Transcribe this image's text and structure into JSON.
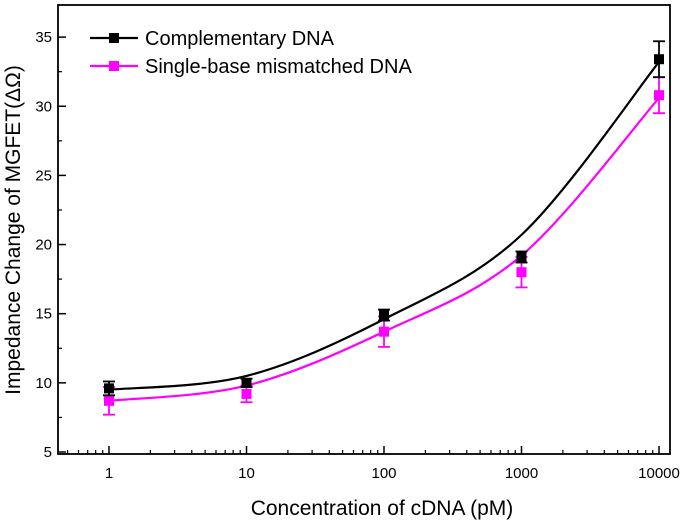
{
  "chart_data": {
    "type": "scatter",
    "xlabel": "Concentration of cDNA (pM)",
    "ylabel": "Impedance Change of MGFET(ΔΩ)",
    "x_scale": "log",
    "xlim": [
      0.5,
      15000
    ],
    "ylim": [
      5,
      37
    ],
    "x_ticks": [
      1,
      10,
      100,
      1000,
      10000
    ],
    "x_tick_labels": [
      "1",
      "10",
      "100",
      "1000",
      "10000"
    ],
    "y_ticks": [
      5,
      10,
      15,
      20,
      25,
      30,
      35
    ],
    "y_tick_labels": [
      "5",
      "10",
      "15",
      "20",
      "25",
      "30",
      "35"
    ],
    "grid": false,
    "legend_placement": "top-left",
    "x": [
      1,
      10,
      100,
      1000,
      10000
    ],
    "series": [
      {
        "name": "Complementary DNA",
        "color": "#000000",
        "values": [
          9.6,
          10.0,
          14.9,
          19.1,
          33.4
        ],
        "errors": [
          0.5,
          0.3,
          0.4,
          0.4,
          1.3
        ],
        "fit": [
          9.5,
          10.5,
          14.6,
          20.7,
          33.2
        ]
      },
      {
        "name": "Single-base mismatched DNA",
        "color": "#ff00ff",
        "values": [
          8.7,
          9.2,
          13.7,
          18.0,
          30.8
        ],
        "errors": [
          1.0,
          0.6,
          1.1,
          1.1,
          1.3
        ],
        "fit": [
          8.7,
          9.8,
          13.7,
          19.2,
          30.6
        ]
      }
    ]
  }
}
